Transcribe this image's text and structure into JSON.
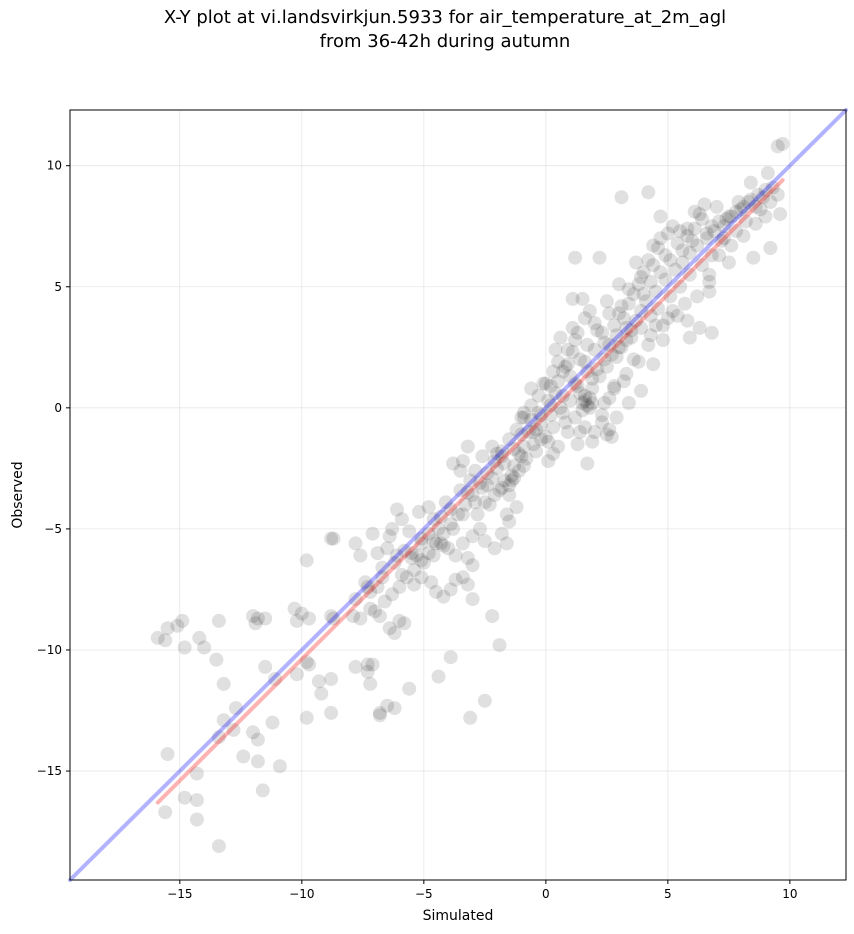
{
  "chart_data": {
    "type": "scatter",
    "title_lines": [
      "X-Y plot at vi.landsvirkjun.5933 for air_temperature_at_2m_agl",
      "from 36-42h during autumn"
    ],
    "xlabel": "Simulated",
    "ylabel": "Observed",
    "xlim": [
      -19.5,
      12.3
    ],
    "ylim": [
      -19.5,
      12.3
    ],
    "xticks": [
      -15,
      -10,
      -5,
      0,
      5,
      10
    ],
    "yticks": [
      -15,
      -10,
      -5,
      0,
      5,
      10
    ],
    "xtick_labels": [
      "−15",
      "−10",
      "−5",
      "0",
      "5",
      "10"
    ],
    "ytick_labels": [
      "−15",
      "−10",
      "−5",
      "0",
      "5",
      "10"
    ],
    "grid": true,
    "colors": {
      "points": "#000000",
      "identity_line": "#0000ff",
      "fit_line": "#ff0000"
    },
    "identity_line": {
      "x": [
        -19.5,
        12.3
      ],
      "y": [
        -19.5,
        12.3
      ]
    },
    "fit_line": {
      "x": [
        -15.9,
        9.7
      ],
      "y": [
        -16.3,
        9.4
      ]
    },
    "points": [
      [
        -15.9,
        -9.5
      ],
      [
        -15.6,
        -9.6
      ],
      [
        -15.5,
        -9.1
      ],
      [
        -15.1,
        -9.0
      ],
      [
        -14.9,
        -8.8
      ],
      [
        -14.8,
        -9.9
      ],
      [
        -14.2,
        -9.5
      ],
      [
        -14.0,
        -9.9
      ],
      [
        -13.5,
        -10.4
      ],
      [
        -13.4,
        -8.8
      ],
      [
        -12.0,
        -8.6
      ],
      [
        -11.9,
        -8.9
      ],
      [
        -11.8,
        -8.7
      ],
      [
        -11.5,
        -8.7
      ],
      [
        -10.3,
        -8.3
      ],
      [
        -10.2,
        -8.8
      ],
      [
        -10.0,
        -8.5
      ],
      [
        -9.7,
        -8.7
      ],
      [
        -8.8,
        -8.6
      ],
      [
        -8.7,
        -8.7
      ],
      [
        -8.7,
        -5.4
      ],
      [
        -9.8,
        -6.3
      ],
      [
        -7.8,
        -5.6
      ],
      [
        -7.6,
        -6.1
      ],
      [
        -7.1,
        -5.2
      ],
      [
        -7.4,
        -7.2
      ],
      [
        -7.2,
        -7.6
      ],
      [
        -6.9,
        -7.4
      ],
      [
        -6.7,
        -6.6
      ],
      [
        -6.2,
        -6.4
      ],
      [
        -5.9,
        -6.9
      ],
      [
        -5.5,
        -6.0
      ],
      [
        -5.3,
        -6.1
      ],
      [
        -5.1,
        -5.6
      ],
      [
        -4.8,
        -5.2
      ],
      [
        -4.6,
        -5.5
      ],
      [
        -4.3,
        -5.6
      ],
      [
        -4.6,
        -4.6
      ],
      [
        -4.3,
        -4.5
      ],
      [
        -3.9,
        -4.2
      ],
      [
        -3.5,
        -3.4
      ],
      [
        -3.2,
        -3.5
      ],
      [
        -4.0,
        -5.8
      ],
      [
        -3.7,
        -6.1
      ],
      [
        -3.4,
        -5.6
      ],
      [
        -3.2,
        -6.2
      ],
      [
        -3.0,
        -6.5
      ],
      [
        -3.0,
        -5.3
      ],
      [
        -2.7,
        -5.0
      ],
      [
        -2.5,
        -5.5
      ],
      [
        -2.1,
        -5.8
      ],
      [
        -1.8,
        -5.2
      ],
      [
        -1.6,
        -5.6
      ],
      [
        -1.5,
        -4.7
      ],
      [
        -1.6,
        -4.4
      ],
      [
        -1.2,
        -4.1
      ],
      [
        -3.8,
        -2.3
      ],
      [
        -3.4,
        -2.2
      ],
      [
        -3.2,
        -1.6
      ],
      [
        -2.9,
        -2.6
      ],
      [
        -2.6,
        -2.0
      ],
      [
        -2.2,
        -1.6
      ],
      [
        -2.0,
        -2.5
      ],
      [
        -1.7,
        -3.0
      ],
      [
        -1.4,
        -2.8
      ],
      [
        -1.1,
        -1.9
      ],
      [
        -0.9,
        -1.6
      ],
      [
        -0.7,
        -1.0
      ],
      [
        -2.1,
        -3.6
      ],
      [
        -2.5,
        -3.9
      ],
      [
        -1.8,
        -3.3
      ],
      [
        -1.5,
        -3.6
      ],
      [
        -1.3,
        -2.4
      ],
      [
        -1.0,
        -2.0
      ],
      [
        -0.9,
        -0.2
      ],
      [
        -0.6,
        -0.5
      ],
      [
        -0.4,
        -0.9
      ],
      [
        -0.2,
        -0.7
      ],
      [
        0.0,
        -1.2
      ],
      [
        0.1,
        0.3
      ],
      [
        0.2,
        0.9
      ],
      [
        0.4,
        0.6
      ],
      [
        0.5,
        1.1
      ],
      [
        0.7,
        1.5
      ],
      [
        0.9,
        1.8
      ],
      [
        1.1,
        2.3
      ],
      [
        1.2,
        2.8
      ],
      [
        1.3,
        3.1
      ],
      [
        1.6,
        3.7
      ],
      [
        1.8,
        4.0
      ],
      [
        1.5,
        4.5
      ],
      [
        1.1,
        4.5
      ],
      [
        1.2,
        6.2
      ],
      [
        2.2,
        6.2
      ],
      [
        2.0,
        3.5
      ],
      [
        2.3,
        3.1
      ],
      [
        2.6,
        2.6
      ],
      [
        2.9,
        3.0
      ],
      [
        3.2,
        3.7
      ],
      [
        3.4,
        4.3
      ],
      [
        3.6,
        4.7
      ],
      [
        3.8,
        5.1
      ],
      [
        4.0,
        5.6
      ],
      [
        4.2,
        6.1
      ],
      [
        4.4,
        6.7
      ],
      [
        4.7,
        7.0
      ],
      [
        5.0,
        7.2
      ],
      [
        5.2,
        7.5
      ],
      [
        5.5,
        7.3
      ],
      [
        5.8,
        7.1
      ],
      [
        6.1,
        7.4
      ],
      [
        6.4,
        7.8
      ],
      [
        6.8,
        7.5
      ],
      [
        7.1,
        7.7
      ],
      [
        7.4,
        7.8
      ],
      [
        7.8,
        8.1
      ],
      [
        8.1,
        8.3
      ],
      [
        8.4,
        8.6
      ],
      [
        8.7,
        8.8
      ],
      [
        9.0,
        9.0
      ],
      [
        8.4,
        9.3
      ],
      [
        9.1,
        9.7
      ],
      [
        9.5,
        10.8
      ],
      [
        9.7,
        10.9
      ],
      [
        3.1,
        8.7
      ],
      [
        4.2,
        8.9
      ],
      [
        4.7,
        7.9
      ],
      [
        6.5,
        8.4
      ],
      [
        9.6,
        8.0
      ],
      [
        9.2,
        6.6
      ],
      [
        8.5,
        6.2
      ],
      [
        7.5,
        6.0
      ],
      [
        6.7,
        4.8
      ],
      [
        6.7,
        5.2
      ],
      [
        6.3,
        3.3
      ],
      [
        6.8,
        3.1
      ],
      [
        5.8,
        3.6
      ],
      [
        5.0,
        3.7
      ],
      [
        5.4,
        3.8
      ],
      [
        4.8,
        2.8
      ],
      [
        5.9,
        2.9
      ],
      [
        4.5,
        3.4
      ],
      [
        4.2,
        2.6
      ],
      [
        3.6,
        2.0
      ],
      [
        3.2,
        1.1
      ],
      [
        2.8,
        0.8
      ],
      [
        2.6,
        0.4
      ],
      [
        2.3,
        -0.6
      ],
      [
        2.6,
        -0.9
      ],
      [
        2.7,
        -1.2
      ],
      [
        2.5,
        -1.1
      ],
      [
        1.7,
        -2.3
      ],
      [
        1.3,
        -1.5
      ],
      [
        0.8,
        -0.6
      ],
      [
        1.5,
        0.2
      ],
      [
        1.7,
        0.1
      ],
      [
        1.8,
        0.4
      ],
      [
        0.3,
        -1.9
      ],
      [
        0.1,
        -2.2
      ],
      [
        -0.2,
        -1.3
      ],
      [
        -0.5,
        -1.0
      ],
      [
        -0.8,
        -2.1
      ],
      [
        -1.1,
        -2.6
      ],
      [
        -1.3,
        -2.9
      ],
      [
        -1.5,
        -3.2
      ],
      [
        -4.8,
        -4.1
      ],
      [
        -5.2,
        -4.3
      ],
      [
        -6.1,
        -4.2
      ],
      [
        -6.3,
        -5.0
      ],
      [
        -6.5,
        -5.8
      ],
      [
        -5.1,
        -5.4
      ],
      [
        -8.8,
        -5.4
      ],
      [
        -7.9,
        -8.6
      ],
      [
        -7.6,
        -8.7
      ],
      [
        -7.2,
        -8.3
      ],
      [
        -6.8,
        -8.6
      ],
      [
        -6.4,
        -9.1
      ],
      [
        -6.2,
        -9.3
      ],
      [
        -6.0,
        -8.8
      ],
      [
        -5.8,
        -8.9
      ],
      [
        -5.4,
        -7.3
      ],
      [
        -5.1,
        -7.0
      ],
      [
        -4.7,
        -7.2
      ],
      [
        -4.5,
        -7.6
      ],
      [
        -4.2,
        -7.8
      ],
      [
        -3.9,
        -7.5
      ],
      [
        -3.7,
        -7.1
      ],
      [
        -3.4,
        -7.0
      ],
      [
        -3.2,
        -7.3
      ],
      [
        -3.0,
        -7.9
      ],
      [
        -2.2,
        -8.6
      ],
      [
        -1.9,
        -9.8
      ],
      [
        -4.4,
        -11.1
      ],
      [
        -3.9,
        -10.3
      ],
      [
        -5.6,
        -11.6
      ],
      [
        -6.2,
        -12.4
      ],
      [
        -6.5,
        -12.3
      ],
      [
        -6.8,
        -12.6
      ],
      [
        -6.8,
        -12.7
      ],
      [
        -7.2,
        -11.4
      ],
      [
        -7.3,
        -10.9
      ],
      [
        -7.3,
        -10.6
      ],
      [
        -7.1,
        -10.6
      ],
      [
        -7.8,
        -10.7
      ],
      [
        -8.8,
        -11.2
      ],
      [
        -8.8,
        -12.6
      ],
      [
        -9.2,
        -11.8
      ],
      [
        -9.3,
        -11.3
      ],
      [
        -9.7,
        -10.6
      ],
      [
        -9.8,
        -10.5
      ],
      [
        -10.2,
        -11.0
      ],
      [
        -9.8,
        -12.8
      ],
      [
        -11.1,
        -11.2
      ],
      [
        -11.2,
        -13.0
      ],
      [
        -11.5,
        -10.7
      ],
      [
        -12.0,
        -13.4
      ],
      [
        -11.8,
        -13.7
      ],
      [
        -11.8,
        -14.6
      ],
      [
        -11.6,
        -15.8
      ],
      [
        -12.4,
        -14.4
      ],
      [
        -12.7,
        -12.4
      ],
      [
        -12.8,
        -13.3
      ],
      [
        -13.2,
        -12.9
      ],
      [
        -13.4,
        -13.6
      ],
      [
        -13.2,
        -11.4
      ],
      [
        -10.9,
        -14.8
      ],
      [
        -14.3,
        -15.1
      ],
      [
        -14.3,
        -16.2
      ],
      [
        -14.8,
        -16.1
      ],
      [
        -15.5,
        -14.3
      ],
      [
        -15.6,
        -16.7
      ],
      [
        -14.3,
        -17.0
      ],
      [
        -13.4,
        -18.1
      ],
      [
        -3.1,
        -12.8
      ],
      [
        -2.5,
        -12.1
      ],
      [
        -1.8,
        -2.0
      ],
      [
        -1.0,
        -0.4
      ],
      [
        0.2,
        -0.3
      ],
      [
        0.6,
        0.0
      ],
      [
        1.0,
        0.3
      ],
      [
        1.4,
        0.6
      ],
      [
        1.9,
        1.2
      ],
      [
        2.1,
        1.6
      ],
      [
        2.4,
        2.0
      ],
      [
        2.7,
        2.2
      ],
      [
        3.0,
        2.5
      ],
      [
        3.3,
        2.8
      ],
      [
        3.5,
        3.2
      ],
      [
        3.7,
        3.6
      ],
      [
        3.9,
        4.0
      ],
      [
        4.1,
        4.4
      ],
      [
        4.5,
        4.8
      ],
      [
        4.9,
        5.3
      ],
      [
        5.3,
        5.7
      ],
      [
        5.6,
        6.0
      ],
      [
        5.9,
        6.4
      ],
      [
        6.2,
        6.7
      ],
      [
        6.6,
        7.0
      ],
      [
        6.9,
        7.3
      ],
      [
        7.3,
        7.5
      ],
      [
        7.6,
        7.9
      ],
      [
        8.0,
        8.2
      ],
      [
        8.3,
        8.5
      ],
      [
        8.6,
        8.3
      ],
      [
        8.9,
        8.7
      ],
      [
        9.3,
        9.1
      ],
      [
        9.5,
        8.8
      ],
      [
        7.2,
        6.9
      ],
      [
        6.8,
        6.3
      ],
      [
        6.4,
        5.9
      ],
      [
        5.9,
        5.5
      ],
      [
        5.5,
        5.0
      ],
      [
        5.1,
        4.6
      ],
      [
        4.6,
        4.1
      ],
      [
        4.3,
        3.8
      ],
      [
        3.9,
        3.3
      ],
      [
        3.5,
        2.9
      ],
      [
        3.1,
        2.5
      ],
      [
        2.9,
        2.1
      ],
      [
        2.5,
        1.7
      ],
      [
        2.2,
        1.3
      ],
      [
        1.9,
        0.8
      ],
      [
        1.6,
        0.5
      ],
      [
        1.3,
        0.9
      ],
      [
        1.0,
        1.3
      ],
      [
        0.8,
        1.7
      ],
      [
        0.5,
        1.9
      ],
      [
        0.3,
        1.5
      ],
      [
        0.0,
        1.0
      ],
      [
        -0.3,
        0.5
      ],
      [
        -0.6,
        0.1
      ],
      [
        -0.9,
        -0.4
      ],
      [
        -1.2,
        -0.9
      ],
      [
        -1.5,
        -1.3
      ],
      [
        -1.8,
        -1.8
      ],
      [
        -2.1,
        -2.2
      ],
      [
        -2.4,
        -2.7
      ],
      [
        -2.7,
        -3.1
      ],
      [
        -3.0,
        -3.6
      ],
      [
        -3.3,
        -4.0
      ],
      [
        -3.6,
        -4.4
      ],
      [
        -3.9,
        -4.8
      ],
      [
        -4.2,
        -5.2
      ],
      [
        -4.5,
        -5.6
      ],
      [
        -4.8,
        -6.0
      ],
      [
        -5.1,
        -6.3
      ],
      [
        -5.4,
        -6.7
      ],
      [
        -5.7,
        -7.0
      ],
      [
        -6.0,
        -7.4
      ],
      [
        -6.3,
        -7.7
      ],
      [
        -6.6,
        -8.0
      ],
      [
        -7.0,
        -8.4
      ],
      [
        -2.8,
        -4.4
      ],
      [
        -2.3,
        -4.0
      ],
      [
        -1.9,
        -3.4
      ],
      [
        -1.4,
        -3.0
      ],
      [
        -0.9,
        -2.4
      ],
      [
        -0.4,
        -1.8
      ],
      [
        0.3,
        -0.8
      ],
      [
        0.7,
        -0.2
      ],
      [
        1.2,
        -0.4
      ],
      [
        1.6,
        -0.8
      ],
      [
        2.0,
        -1.0
      ],
      [
        2.4,
        0.2
      ],
      [
        2.8,
        0.9
      ],
      [
        3.3,
        1.4
      ],
      [
        3.8,
        1.9
      ],
      [
        4.3,
        3.0
      ],
      [
        4.8,
        3.4
      ],
      [
        5.2,
        4.0
      ],
      [
        5.7,
        4.3
      ],
      [
        6.2,
        4.6
      ],
      [
        6.7,
        5.5
      ],
      [
        7.1,
        6.3
      ],
      [
        7.6,
        6.7
      ],
      [
        8.1,
        7.1
      ],
      [
        8.6,
        7.6
      ],
      [
        9.0,
        7.9
      ],
      [
        2.1,
        3.2
      ],
      [
        1.7,
        2.6
      ],
      [
        1.4,
        2.0
      ],
      [
        0.9,
        2.4
      ],
      [
        0.6,
        2.9
      ],
      [
        1.1,
        3.3
      ],
      [
        2.6,
        3.9
      ],
      [
        3.1,
        4.2
      ],
      [
        3.4,
        4.9
      ],
      [
        3.9,
        5.4
      ],
      [
        4.4,
        5.9
      ],
      [
        4.9,
        6.3
      ],
      [
        5.4,
        6.8
      ],
      [
        5.8,
        7.4
      ],
      [
        6.3,
        8.0
      ],
      [
        6.1,
        8.1
      ],
      [
        7.0,
        8.3
      ],
      [
        7.9,
        8.5
      ],
      [
        4.6,
        6.6
      ],
      [
        3.7,
        6.0
      ],
      [
        3.0,
        5.1
      ],
      [
        2.5,
        4.4
      ],
      [
        0.4,
        2.4
      ],
      [
        -0.1,
        1.0
      ],
      [
        -0.6,
        0.8
      ],
      [
        -0.3,
        -0.2
      ],
      [
        0.1,
        -1.4
      ],
      [
        -0.5,
        -1.5
      ],
      [
        -1.0,
        -1.1
      ],
      [
        -2.0,
        -1.9
      ],
      [
        -2.4,
        -3.2
      ],
      [
        -2.9,
        -3.9
      ],
      [
        -3.4,
        -4.4
      ],
      [
        -3.8,
        -5.0
      ],
      [
        -4.2,
        -5.7
      ],
      [
        -4.6,
        -6.1
      ],
      [
        -5.0,
        -6.4
      ],
      [
        -5.5,
        -6.2
      ],
      [
        -5.8,
        -5.9
      ],
      [
        -6.1,
        -6.1
      ],
      [
        -6.7,
        -7.0
      ],
      [
        -7.3,
        -7.4
      ],
      [
        -7.8,
        -7.9
      ],
      [
        1.9,
        -1.4
      ],
      [
        1.4,
        -1.0
      ],
      [
        2.3,
        -0.3
      ],
      [
        2.9,
        -0.4
      ],
      [
        3.4,
        0.2
      ],
      [
        3.9,
        0.7
      ],
      [
        4.4,
        1.8
      ],
      [
        0.9,
        -1.0
      ],
      [
        0.5,
        -1.6
      ],
      [
        1.7,
        1.5
      ],
      [
        1.2,
        1.0
      ],
      [
        0.7,
        0.5
      ],
      [
        0.2,
        0.1
      ],
      [
        -0.2,
        -0.3
      ],
      [
        1.8,
        0.0
      ],
      [
        1.5,
        -0.1
      ],
      [
        1.9,
        0.2
      ],
      [
        1.6,
        0.3
      ],
      [
        3.0,
        3.9
      ],
      [
        3.3,
        3.3
      ],
      [
        2.8,
        3.4
      ],
      [
        2.4,
        2.7
      ],
      [
        2.0,
        2.4
      ],
      [
        1.6,
        1.9
      ],
      [
        4.0,
        4.7
      ],
      [
        4.3,
        5.2
      ],
      [
        4.7,
        5.6
      ],
      [
        5.1,
        6.1
      ],
      [
        5.6,
        6.5
      ],
      [
        6.0,
        6.9
      ],
      [
        6.6,
        7.2
      ],
      [
        7.5,
        7.9
      ],
      [
        8.2,
        7.7
      ],
      [
        8.8,
        8.2
      ],
      [
        9.2,
        8.5
      ],
      [
        7.8,
        7.3
      ],
      [
        7.3,
        7.0
      ],
      [
        -1.3,
        -1.7
      ],
      [
        -1.7,
        -2.3
      ],
      [
        -2.2,
        -2.9
      ],
      [
        -2.6,
        -3.3
      ],
      [
        -3.1,
        -3.0
      ],
      [
        -3.5,
        -2.6
      ],
      [
        -4.1,
        -3.9
      ],
      [
        -4.4,
        -5.0
      ],
      [
        -5.6,
        -5.1
      ],
      [
        -5.9,
        -4.6
      ],
      [
        -6.4,
        -5.3
      ],
      [
        -6.9,
        -6.0
      ]
    ]
  }
}
